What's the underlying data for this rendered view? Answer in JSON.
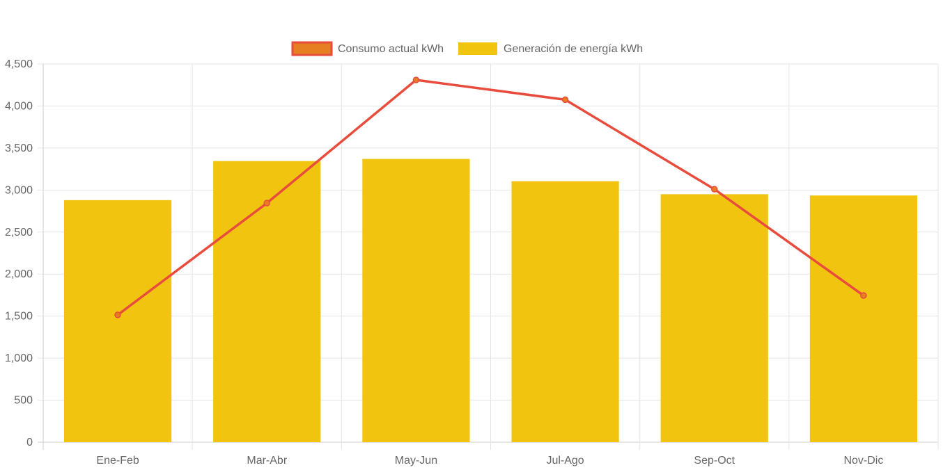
{
  "chart_data": {
    "type": "bar",
    "categories": [
      "Ene-Feb",
      "Mar-Abr",
      "May-Jun",
      "Jul-Ago",
      "Sep-Oct",
      "Nov-Dic"
    ],
    "y_ticks": [
      "0",
      "500",
      "1,000",
      "1,500",
      "2,000",
      "2,500",
      "3,000",
      "3,500",
      "4,000",
      "4,500"
    ],
    "ylim": [
      0,
      4500
    ],
    "grid": true,
    "legend_position": "top-center",
    "series": [
      {
        "name": "Consumo actual kWh",
        "type": "line",
        "values": [
          1515,
          2845,
          4310,
          4075,
          3010,
          1745
        ],
        "color": "#e74c3c",
        "point_color": "#e67e22"
      },
      {
        "name": "Generación de energía kWh",
        "type": "bar",
        "values": [
          2880,
          3345,
          3370,
          3105,
          2950,
          2935
        ],
        "color": "#f1c40f"
      }
    ]
  }
}
